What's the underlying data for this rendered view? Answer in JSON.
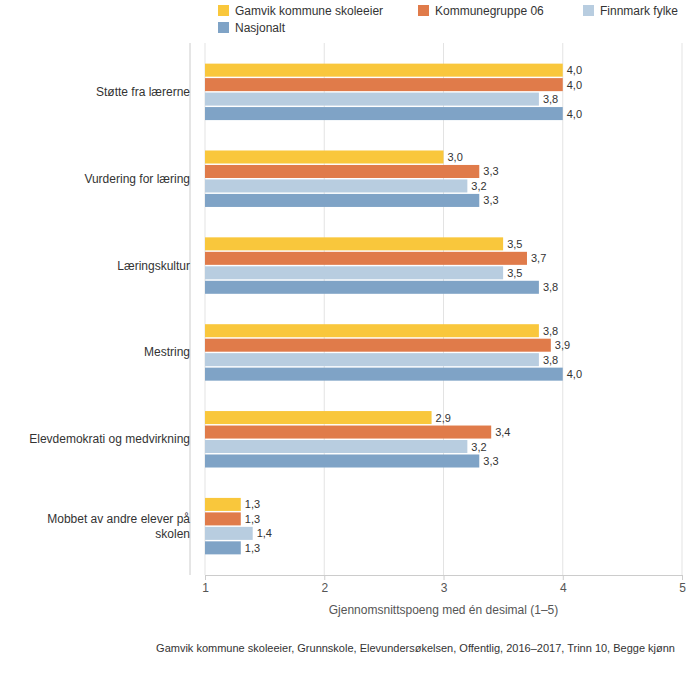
{
  "chart_data": {
    "type": "bar",
    "orientation": "horizontal",
    "data_labels": true,
    "grid": true,
    "legend": "top",
    "x_label": "Gjennomsnittspoeng med én desimal (1–5)",
    "annotations": [
      "Gamvik kommune skoleeier, Grunnskole, Elevundersøkelsen, Offentlig, 2016–2017, Trinn 10, Begge kjønn"
    ],
    "categories": [
      "Støtte fra lærerne",
      "Vurdering for læring",
      "Læringskultur",
      "Mestring",
      "Elevdemokrati og medvirkning",
      "Mobbet av andre elever på skolen"
    ],
    "xlim": [
      1,
      5
    ],
    "xticks": [
      1,
      2,
      3,
      4,
      5
    ],
    "series": [
      {
        "name": "Gamvik kommune skoleeier",
        "color": "#f9c73c",
        "values": [
          4.0,
          3.0,
          3.5,
          3.8,
          2.9,
          1.3
        ],
        "value_labels": [
          "4,0",
          "3,0",
          "3,5",
          "3,8",
          "2,9",
          "1,3"
        ]
      },
      {
        "name": "Kommunegruppe 06",
        "color": "#e07b4a",
        "values": [
          4.0,
          3.3,
          3.7,
          3.9,
          3.4,
          1.3
        ],
        "value_labels": [
          "4,0",
          "3,3",
          "3,7",
          "3,9",
          "3,4",
          "1,3"
        ]
      },
      {
        "name": "Finnmark fylke",
        "color": "#b8cde0",
        "values": [
          3.8,
          3.2,
          3.5,
          3.8,
          3.2,
          1.4
        ],
        "value_labels": [
          "3,8",
          "3,2",
          "3,5",
          "3,8",
          "3,2",
          "1,4"
        ]
      },
      {
        "name": "Nasjonalt",
        "color": "#7fa3c6",
        "values": [
          4.0,
          3.3,
          3.8,
          4.0,
          3.3,
          1.3
        ],
        "value_labels": [
          "4,0",
          "3,3",
          "3,8",
          "4,0",
          "3,3",
          "1,3"
        ]
      }
    ]
  }
}
